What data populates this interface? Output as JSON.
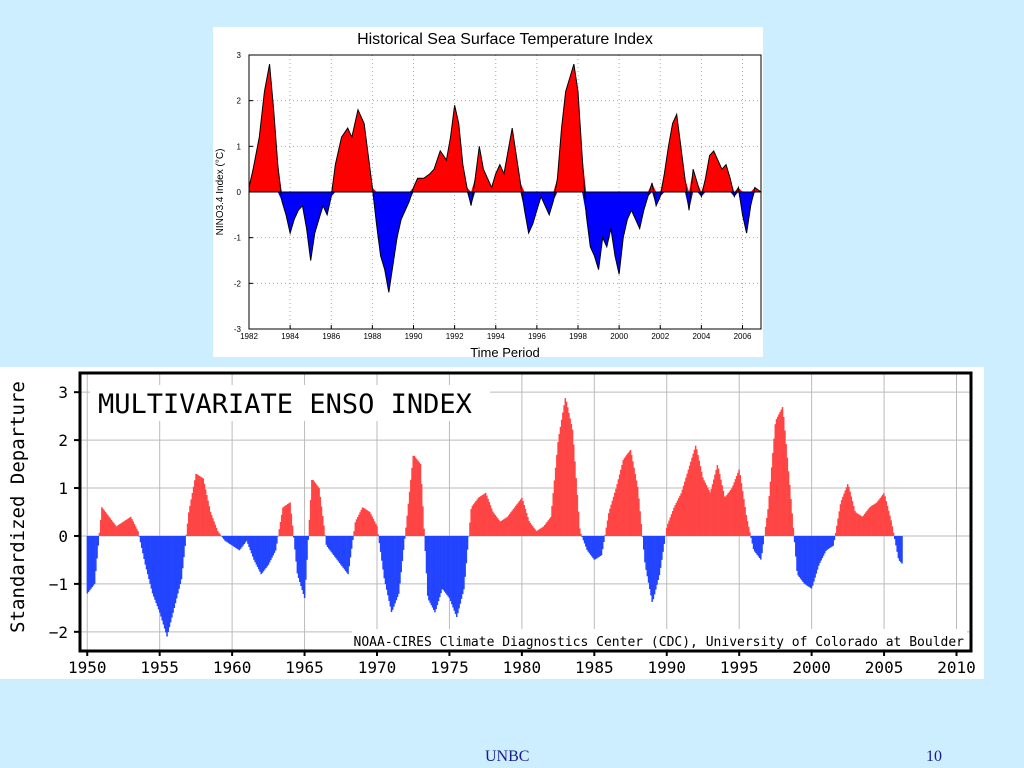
{
  "footer": {
    "org": "UNBC",
    "page_number": "10"
  },
  "chart_data": [
    {
      "type": "area",
      "title": "Historical Sea Surface Temperature Index",
      "xlabel": "Time Period",
      "ylabel": "NINO3.4 Index (°C)",
      "xlim": [
        1982,
        2006.9
      ],
      "ylim": [
        -3,
        3
      ],
      "xticks": [
        1982,
        1984,
        1986,
        1988,
        1990,
        1992,
        1994,
        1996,
        1998,
        2000,
        2002,
        2004,
        2006
      ],
      "yticks": [
        -3,
        -2,
        -1,
        0,
        1,
        2,
        3
      ],
      "grid": true,
      "colors": {
        "positive": "#ff0000",
        "negative": "#0000ff",
        "line": "#000000"
      },
      "series": [
        {
          "x": [
            1982.0,
            1982.2,
            1982.5,
            1982.75,
            1983.0,
            1983.2,
            1983.4,
            1983.6,
            1983.8,
            1984.0,
            1984.2,
            1984.4,
            1984.6,
            1984.8,
            1985.0,
            1985.2,
            1985.4,
            1985.6,
            1985.8,
            1986.0,
            1986.2,
            1986.5,
            1986.8,
            1987.0,
            1987.3,
            1987.6,
            1987.8,
            1988.0,
            1988.2,
            1988.4,
            1988.6,
            1988.8,
            1989.0,
            1989.2,
            1989.4,
            1989.6,
            1989.8,
            1990.0,
            1990.2,
            1990.5,
            1990.8,
            1991.0,
            1991.3,
            1991.6,
            1991.8,
            1992.0,
            1992.2,
            1992.4,
            1992.6,
            1992.8,
            1993.0,
            1993.2,
            1993.4,
            1993.6,
            1993.8,
            1994.0,
            1994.2,
            1994.4,
            1994.6,
            1994.8,
            1995.0,
            1995.2,
            1995.4,
            1995.6,
            1995.8,
            1996.0,
            1996.2,
            1996.4,
            1996.6,
            1996.8,
            1997.0,
            1997.2,
            1997.4,
            1997.6,
            1997.8,
            1998.0,
            1998.2,
            1998.4,
            1998.6,
            1998.8,
            1999.0,
            1999.2,
            1999.4,
            1999.6,
            1999.8,
            2000.0,
            2000.2,
            2000.4,
            2000.6,
            2000.8,
            2001.0,
            2001.2,
            2001.4,
            2001.6,
            2001.8,
            2002.0,
            2002.2,
            2002.4,
            2002.6,
            2002.8,
            2003.0,
            2003.2,
            2003.4,
            2003.6,
            2003.8,
            2004.0,
            2004.2,
            2004.4,
            2004.6,
            2004.8,
            2005.0,
            2005.2,
            2005.4,
            2005.6,
            2005.8,
            2006.0,
            2006.2,
            2006.4,
            2006.6,
            2006.9
          ],
          "values": [
            0.1,
            0.5,
            1.2,
            2.2,
            2.8,
            1.8,
            0.6,
            -0.2,
            -0.5,
            -0.9,
            -0.6,
            -0.4,
            -0.3,
            -0.8,
            -1.5,
            -0.9,
            -0.6,
            -0.3,
            -0.5,
            -0.1,
            0.6,
            1.2,
            1.4,
            1.2,
            1.8,
            1.5,
            0.8,
            0.1,
            -0.7,
            -1.4,
            -1.7,
            -2.2,
            -1.6,
            -1.0,
            -0.6,
            -0.4,
            -0.2,
            0.1,
            0.3,
            0.3,
            0.4,
            0.5,
            0.9,
            0.7,
            1.2,
            1.9,
            1.5,
            0.6,
            0.1,
            -0.3,
            0.3,
            1.0,
            0.5,
            0.3,
            0.1,
            0.4,
            0.6,
            0.4,
            0.9,
            1.4,
            0.8,
            0.2,
            -0.4,
            -0.9,
            -0.7,
            -0.4,
            -0.1,
            -0.3,
            -0.5,
            -0.2,
            0.3,
            1.4,
            2.2,
            2.5,
            2.8,
            2.2,
            0.8,
            -0.5,
            -1.2,
            -1.4,
            -1.7,
            -1.0,
            -1.2,
            -0.8,
            -1.4,
            -1.8,
            -1.0,
            -0.6,
            -0.4,
            -0.6,
            -0.8,
            -0.4,
            -0.1,
            0.2,
            -0.3,
            -0.1,
            0.4,
            1.0,
            1.5,
            1.7,
            1.0,
            0.3,
            -0.4,
            0.5,
            0.2,
            -0.1,
            0.3,
            0.8,
            0.9,
            0.7,
            0.5,
            0.6,
            0.3,
            -0.1,
            0.1,
            -0.5,
            -0.9,
            -0.3,
            0.1,
            0.0
          ]
        }
      ]
    },
    {
      "type": "bar",
      "title": "MULTIVARIATE ENSO INDEX",
      "ylabel": "Standardized Departure",
      "annotation": "NOAA-CIRES Climate Diagnostics Center (CDC), University of Colorado at Boulder",
      "xlim": [
        1949.5,
        2011
      ],
      "ylim": [
        -2.4,
        3.4
      ],
      "xticks": [
        1950,
        1955,
        1960,
        1965,
        1970,
        1975,
        1980,
        1985,
        1990,
        1995,
        2000,
        2005,
        2010
      ],
      "yticks": [
        -2,
        -1,
        0,
        1,
        2,
        3
      ],
      "grid": true,
      "colors": {
        "positive": "#ff4444",
        "negative": "#2244ff"
      },
      "bar_step_years": 0.0833,
      "series": [
        {
          "x": [
            1950.0,
            1950.5,
            1951.0,
            1951.5,
            1952.0,
            1952.5,
            1953.0,
            1953.5,
            1954.0,
            1954.5,
            1955.0,
            1955.5,
            1956.0,
            1956.5,
            1957.0,
            1957.5,
            1958.0,
            1958.5,
            1959.0,
            1959.5,
            1960.0,
            1960.5,
            1961.0,
            1961.5,
            1962.0,
            1962.5,
            1963.0,
            1963.5,
            1964.0,
            1964.5,
            1965.0,
            1965.5,
            1966.0,
            1966.5,
            1967.0,
            1967.5,
            1968.0,
            1968.5,
            1969.0,
            1969.5,
            1970.0,
            1970.5,
            1971.0,
            1971.5,
            1972.0,
            1972.5,
            1973.0,
            1973.5,
            1974.0,
            1974.5,
            1975.0,
            1975.5,
            1976.0,
            1976.5,
            1977.0,
            1977.5,
            1978.0,
            1978.5,
            1979.0,
            1979.5,
            1980.0,
            1980.5,
            1981.0,
            1981.5,
            1982.0,
            1982.5,
            1983.0,
            1983.5,
            1984.0,
            1984.5,
            1985.0,
            1985.5,
            1986.0,
            1986.5,
            1987.0,
            1987.5,
            1988.0,
            1988.5,
            1989.0,
            1989.5,
            1990.0,
            1990.5,
            1991.0,
            1991.5,
            1992.0,
            1992.5,
            1993.0,
            1993.5,
            1994.0,
            1994.5,
            1995.0,
            1995.5,
            1996.0,
            1996.5,
            1997.0,
            1997.5,
            1998.0,
            1998.5,
            1999.0,
            1999.5,
            2000.0,
            2000.5,
            2001.0,
            2001.5,
            2002.0,
            2002.5,
            2003.0,
            2003.5,
            2004.0,
            2004.5,
            2005.0,
            2005.5,
            2006.0,
            2006.3
          ],
          "values": [
            -1.2,
            -1.0,
            0.6,
            0.4,
            0.2,
            0.3,
            0.4,
            0.1,
            -0.6,
            -1.2,
            -1.6,
            -2.1,
            -1.5,
            -0.9,
            0.5,
            1.3,
            1.2,
            0.5,
            0.1,
            -0.1,
            -0.2,
            -0.3,
            -0.1,
            -0.5,
            -0.8,
            -0.6,
            -0.3,
            0.6,
            0.7,
            -0.8,
            -1.3,
            1.2,
            1.0,
            -0.2,
            -0.4,
            -0.6,
            -0.8,
            0.3,
            0.6,
            0.5,
            0.2,
            -0.9,
            -1.6,
            -1.2,
            0.2,
            1.7,
            1.5,
            -1.3,
            -1.6,
            -1.1,
            -1.3,
            -1.7,
            -1.1,
            0.6,
            0.8,
            0.9,
            0.5,
            0.3,
            0.4,
            0.6,
            0.8,
            0.3,
            0.1,
            0.2,
            0.4,
            2.0,
            2.9,
            2.2,
            0.1,
            -0.3,
            -0.5,
            -0.4,
            0.5,
            1.0,
            1.6,
            1.8,
            1.0,
            -0.6,
            -1.4,
            -0.8,
            0.2,
            0.6,
            0.9,
            1.4,
            1.9,
            1.2,
            0.9,
            1.5,
            0.8,
            1.0,
            1.4,
            0.4,
            -0.3,
            -0.5,
            0.6,
            2.4,
            2.7,
            1.0,
            -0.8,
            -1.0,
            -1.1,
            -0.6,
            -0.3,
            -0.2,
            0.7,
            1.1,
            0.5,
            0.4,
            0.6,
            0.7,
            0.9,
            0.3,
            -0.5,
            -0.6
          ]
        }
      ]
    }
  ]
}
